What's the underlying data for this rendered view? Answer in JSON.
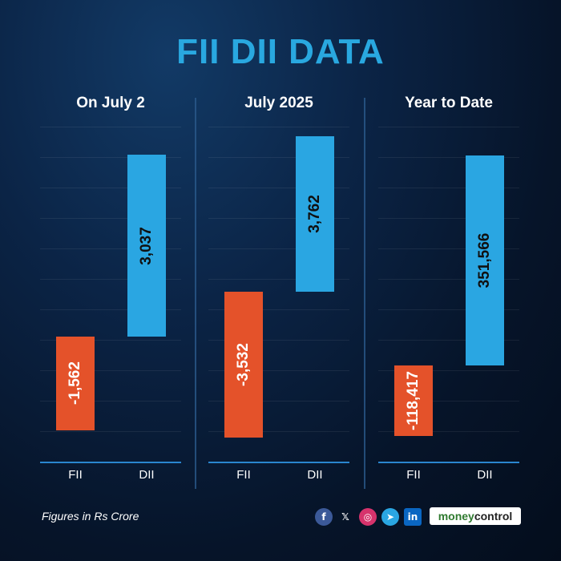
{
  "title": "FII DII DATA",
  "footnote": "Figures in Rs Crore",
  "brand": {
    "part1": "money",
    "part2": "control"
  },
  "social_icons": [
    "facebook-icon",
    "x-icon",
    "instagram-icon",
    "telegram-icon",
    "linkedin-icon"
  ],
  "colors": {
    "fii": "#e4522a",
    "dii": "#2aa6e2",
    "title": "#29a8e0"
  },
  "chart_data": [
    {
      "type": "bar",
      "title": "On July 2",
      "categories": [
        "FII",
        "DII"
      ],
      "values": [
        -1562,
        3037
      ],
      "labels": [
        "-1,562",
        "3,037"
      ]
    },
    {
      "type": "bar",
      "title": "July 2025",
      "categories": [
        "FII",
        "DII"
      ],
      "values": [
        -3532,
        3762
      ],
      "labels": [
        "-3,532",
        "3,762"
      ]
    },
    {
      "type": "bar",
      "title": "Year to Date",
      "categories": [
        "FII",
        "DII"
      ],
      "values": [
        -118417,
        351566
      ],
      "labels": [
        "-118,417",
        "351,566"
      ]
    }
  ]
}
